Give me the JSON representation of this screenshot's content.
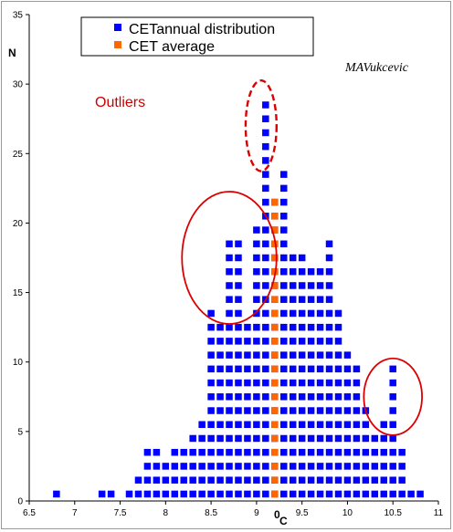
{
  "chart_data": {
    "type": "scatter",
    "title": "",
    "xlabel": "0C",
    "ylabel": "N",
    "xlim": [
      6.5,
      11
    ],
    "ylim": [
      0,
      35
    ],
    "x_ticks": [
      "6.5",
      "7",
      "7.5",
      "8",
      "8.5",
      "9",
      "9.5",
      "10",
      "10.5",
      "11"
    ],
    "y_ticks": [
      "0",
      "5",
      "10",
      "15",
      "20",
      "25",
      "30",
      "35"
    ],
    "grid": false,
    "legend_position": "top-center",
    "signature": "MAVukcevic",
    "annotation": "Outliers",
    "colors": {
      "dist": "#0000ff",
      "avg": "#ff6600",
      "outlier": "#dd0000"
    },
    "series": [
      {
        "name": "CETannual distribution",
        "marker": "square",
        "columns": [
          {
            "x": 6.8,
            "n": 1
          },
          {
            "x": 7.3,
            "n": 1
          },
          {
            "x": 7.4,
            "n": 1
          },
          {
            "x": 7.6,
            "n": 1
          },
          {
            "x": 7.7,
            "n": 2
          },
          {
            "x": 7.8,
            "n": 4
          },
          {
            "x": 7.9,
            "n": 4
          },
          {
            "x": 8.0,
            "n": 3
          },
          {
            "x": 8.1,
            "n": 4
          },
          {
            "x": 8.2,
            "n": 4
          },
          {
            "x": 8.3,
            "n": 5
          },
          {
            "x": 8.4,
            "n": 6
          },
          {
            "x": 8.5,
            "n": 14
          },
          {
            "x": 8.6,
            "n": 13
          },
          {
            "x": 8.7,
            "n": 19
          },
          {
            "x": 8.8,
            "n": 19
          },
          {
            "x": 8.9,
            "n": 13
          },
          {
            "x": 9.0,
            "n": 20
          },
          {
            "x": 9.1,
            "n": 29
          },
          {
            "x": 9.2,
            "n": 22
          },
          {
            "x": 9.3,
            "n": 24
          },
          {
            "x": 9.4,
            "n": 18
          },
          {
            "x": 9.5,
            "n": 18
          },
          {
            "x": 9.6,
            "n": 17
          },
          {
            "x": 9.7,
            "n": 17
          },
          {
            "x": 9.8,
            "n": 19
          },
          {
            "x": 9.9,
            "n": 14
          },
          {
            "x": 10.0,
            "n": 11
          },
          {
            "x": 10.1,
            "n": 10
          },
          {
            "x": 10.2,
            "n": 7
          },
          {
            "x": 10.3,
            "n": 5
          },
          {
            "x": 10.4,
            "n": 6
          },
          {
            "x": 10.5,
            "n": 10
          },
          {
            "x": 10.6,
            "n": 4
          },
          {
            "x": 10.7,
            "n": 1
          },
          {
            "x": 10.8,
            "n": 1
          }
        ]
      },
      {
        "name": "CET average",
        "marker": "square",
        "columns": [
          {
            "x": 9.2,
            "n": 22
          }
        ]
      }
    ],
    "outlier_regions": [
      {
        "x": [
          8.2,
          9.2
        ],
        "y": [
          13,
          22
        ],
        "style": "solid"
      },
      {
        "x": [
          8.9,
          9.2
        ],
        "y": [
          24,
          30
        ],
        "style": "dashed"
      },
      {
        "x": [
          10.2,
          10.8
        ],
        "y": [
          5,
          10
        ],
        "style": "solid"
      }
    ]
  }
}
